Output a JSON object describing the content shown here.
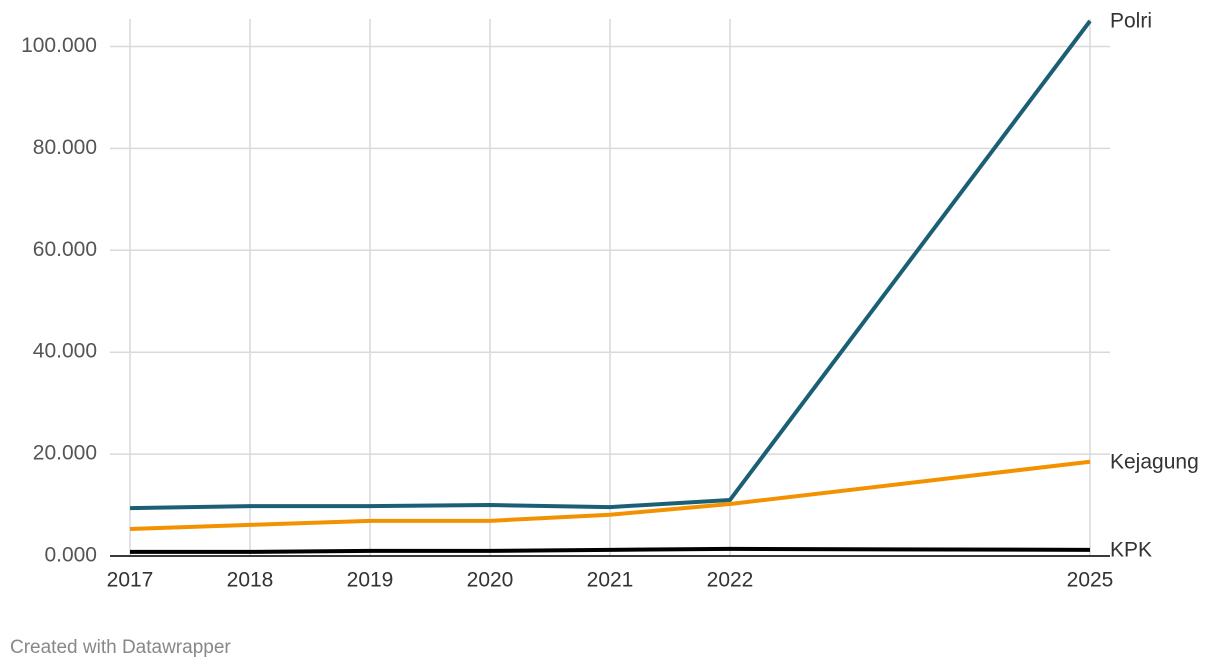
{
  "chart_data": {
    "type": "line",
    "x": [
      2017,
      2018,
      2019,
      2020,
      2021,
      2022,
      2025
    ],
    "xlim": [
      2017,
      2025
    ],
    "xticks": [
      2017,
      2018,
      2019,
      2020,
      2021,
      2022,
      2025
    ],
    "ylim": [
      0,
      105000
    ],
    "yticks": [
      {
        "value": 0,
        "label": "0.000"
      },
      {
        "value": 20000,
        "label": "20.000"
      },
      {
        "value": 40000,
        "label": "40.000"
      },
      {
        "value": 60000,
        "label": "60.000"
      },
      {
        "value": 80000,
        "label": "80.000"
      },
      {
        "value": 100000,
        "label": "100.000"
      }
    ],
    "grid": true,
    "series": [
      {
        "name": "Polri",
        "color": "#1b5f75",
        "values": [
          9400,
          9800,
          9800,
          10000,
          9600,
          11000,
          105000
        ]
      },
      {
        "name": "Kejagung",
        "color": "#f39200",
        "values": [
          5300,
          6100,
          6900,
          6900,
          8100,
          10200,
          18500
        ]
      },
      {
        "name": "KPK",
        "color": "#000000",
        "values": [
          800,
          800,
          1000,
          1000,
          1200,
          1400,
          1200
        ]
      }
    ],
    "source": "Created with Datawrapper"
  }
}
